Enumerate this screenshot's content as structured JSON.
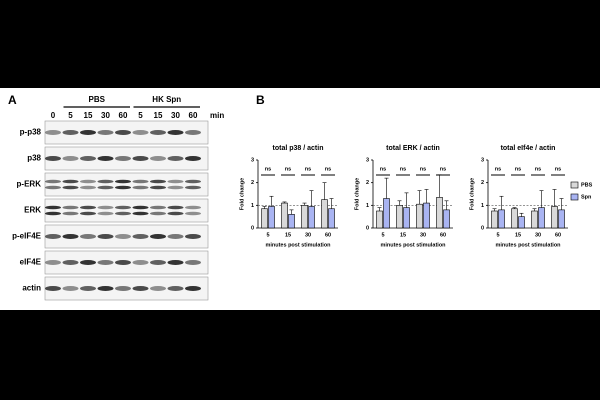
{
  "panel_labels": [
    "A",
    "B"
  ],
  "blot": {
    "groups": [
      {
        "name": "PBS",
        "lanes": [
          1,
          4
        ]
      },
      {
        "name": "HK Spn",
        "lanes": [
          5,
          8
        ]
      }
    ],
    "lanes": [
      "0",
      "5",
      "15",
      "30",
      "60",
      "5",
      "15",
      "30",
      "60"
    ],
    "unit": "min",
    "rows": [
      "p-p38",
      "p38",
      "p-ERK",
      "ERK",
      "p-eIF4E",
      "eIF4E",
      "actin"
    ]
  },
  "chart_data": [
    {
      "type": "bar",
      "title": "total p38 / actin",
      "ylabel": "Fold change",
      "xlabel": "minutes post stimulation",
      "categories": [
        "5",
        "15",
        "30",
        "60"
      ],
      "ylim": [
        0,
        3
      ],
      "yticks": [
        0,
        1,
        2,
        3
      ],
      "reference_line": 1,
      "annotations": [
        "ns",
        "ns",
        "ns",
        "ns"
      ],
      "series": [
        {
          "name": "PBS",
          "color": "#d9d9d9",
          "values": [
            0.85,
            1.1,
            1.0,
            1.25
          ],
          "errors": [
            0.1,
            0.05,
            0.1,
            0.75
          ]
        },
        {
          "name": "Spn",
          "color": "#a9b4f2",
          "values": [
            0.95,
            0.6,
            0.95,
            0.85
          ],
          "errors": [
            0.45,
            0.2,
            0.7,
            0.45
          ]
        }
      ]
    },
    {
      "type": "bar",
      "title": "total ERK / actin",
      "ylabel": "Fold change",
      "xlabel": "minutes post stimulation",
      "categories": [
        "5",
        "15",
        "30",
        "60"
      ],
      "ylim": [
        0,
        3
      ],
      "yticks": [
        0,
        1,
        2,
        3
      ],
      "reference_line": 1,
      "annotations": [
        "ns",
        "ns",
        "ns",
        "ns"
      ],
      "series": [
        {
          "name": "PBS",
          "color": "#d9d9d9",
          "values": [
            0.75,
            1.0,
            1.05,
            1.35
          ],
          "errors": [
            0.15,
            0.2,
            0.6,
            1.0
          ]
        },
        {
          "name": "Spn",
          "color": "#a9b4f2",
          "values": [
            1.3,
            0.9,
            1.1,
            0.8
          ],
          "errors": [
            0.9,
            0.65,
            0.6,
            0.4
          ]
        }
      ]
    },
    {
      "type": "bar",
      "title": "total eIf4e / actin",
      "ylabel": "Fold change",
      "xlabel": "minutes post stimulation",
      "categories": [
        "5",
        "15",
        "30",
        "60"
      ],
      "ylim": [
        0,
        3
      ],
      "yticks": [
        0,
        1,
        2,
        3
      ],
      "reference_line": 1,
      "annotations": [
        "ns",
        "ns",
        "ns",
        "ns"
      ],
      "legend": "right",
      "series": [
        {
          "name": "PBS",
          "color": "#d9d9d9",
          "values": [
            0.75,
            0.85,
            0.75,
            0.95
          ],
          "errors": [
            0.1,
            0.05,
            0.1,
            0.75
          ]
        },
        {
          "name": "Spn",
          "color": "#a9b4f2",
          "values": [
            0.8,
            0.5,
            0.9,
            0.8
          ],
          "errors": [
            0.6,
            0.15,
            0.75,
            0.5
          ]
        }
      ]
    }
  ]
}
